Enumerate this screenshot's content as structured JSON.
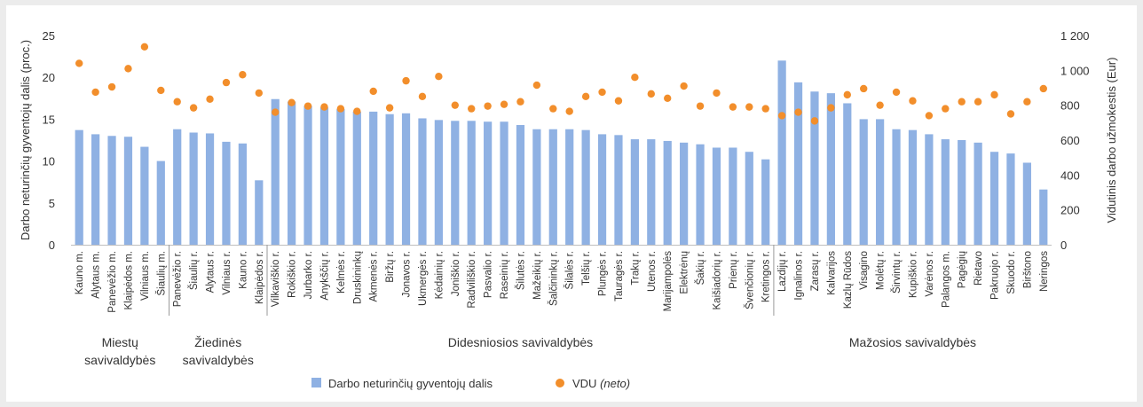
{
  "chart_data": {
    "type": "bar",
    "y_left_label": "Darbo neturinčių gyventojų dalis (proc.)",
    "y_right_label": "Vidutinis darbo užmokestis (Eur)",
    "ylim_left": [
      0,
      25
    ],
    "ylim_right": [
      0,
      1200
    ],
    "yticks_left": [
      "0",
      "5",
      "10",
      "15",
      "20",
      "25"
    ],
    "yticks_right": [
      "0",
      "200",
      "400",
      "600",
      "800",
      "1 000",
      "1 200"
    ],
    "grid": false,
    "legend_position": "bottom",
    "colors": {
      "bar": "#8fb1e3",
      "dot": "#f28e2b"
    },
    "categories": [
      "Kauno m.",
      "Alytaus m.",
      "Panevėžio m.",
      "Klaipėdos m.",
      "Vilniaus m.",
      "Šiaulių m.",
      "Panevėžio r.",
      "Šiaulių r.",
      "Alytaus r.",
      "Vilniaus r.",
      "Kauno r.",
      "Klaipėdos r.",
      "Vilkaviškio r.",
      "Rokiškio r.",
      "Jurbarko r.",
      "Anykščių r.",
      "Kelmės r.",
      "Druskininkų",
      "Akmenės r.",
      "Biržų r.",
      "Jonavos r.",
      "Ukmergės r.",
      "Kėdainių r.",
      "Joniškio r.",
      "Radviliškio r.",
      "Pasvalio r.",
      "Raseinių r.",
      "Šilutės r.",
      "Mažeikių r.",
      "Šalčininkų r.",
      "Šilalės r.",
      "Telšių r.",
      "Plungės r.",
      "Tauragės r.",
      "Trakų r.",
      "Utenos r.",
      "Marijampolės",
      "Elektrėnų",
      "Šakių r.",
      "Kaišiadorių r.",
      "Prienų r.",
      "Švenčionių r.",
      "Kretingos r.",
      "Lazdijų r.",
      "Ignalinos r.",
      "Zarasų r.",
      "Kalvarijos",
      "Kazlų Rūdos",
      "Visagino",
      "Molėtų r.",
      "Širvintų r.",
      "Kupiškio r.",
      "Varėnos r.",
      "Palangos m.",
      "Pagėgių",
      "Rietavo",
      "Pakruojo r.",
      "Skuodo r.",
      "Birštono",
      "Neringos"
    ],
    "series": [
      {
        "name": "Darbo neturinčių gyventojų dalis",
        "axis": "left",
        "values": [
          13.7,
          13.2,
          13.0,
          12.9,
          11.7,
          10.0,
          13.8,
          13.4,
          13.3,
          12.3,
          12.1,
          7.7,
          17.4,
          17.1,
          16.6,
          16.4,
          16.2,
          15.9,
          15.9,
          15.6,
          15.7,
          15.1,
          14.9,
          14.8,
          14.8,
          14.7,
          14.7,
          14.3,
          13.8,
          13.8,
          13.8,
          13.7,
          13.2,
          13.1,
          12.6,
          12.6,
          12.4,
          12.2,
          12.0,
          11.6,
          11.6,
          11.1,
          10.2,
          22.0,
          19.4,
          18.3,
          18.1,
          16.9,
          15.0,
          15.0,
          13.8,
          13.7,
          13.2,
          12.6,
          12.5,
          12.2,
          11.1,
          10.9,
          9.8,
          6.6
        ]
      },
      {
        "name": "VDU",
        "name_suffix": "(neto)",
        "axis": "right",
        "values": [
          1040,
          875,
          905,
          1010,
          1135,
          885,
          820,
          785,
          835,
          930,
          975,
          870,
          760,
          815,
          795,
          790,
          780,
          765,
          880,
          785,
          940,
          850,
          965,
          800,
          780,
          795,
          805,
          820,
          915,
          780,
          765,
          850,
          875,
          825,
          960,
          865,
          840,
          910,
          795,
          870,
          790,
          790,
          780,
          740,
          760,
          710,
          785,
          860,
          895,
          800,
          875,
          825,
          740,
          780,
          820,
          820,
          860,
          750,
          820,
          895
        ]
      }
    ],
    "groups": [
      {
        "label": [
          "Miestų",
          "savivaldybės"
        ],
        "count": 6
      },
      {
        "label": [
          "Žiedinės",
          "savivaldybės"
        ],
        "count": 6
      },
      {
        "label": [
          "Didesniosios savivaldybės"
        ],
        "count": 31
      },
      {
        "label": [
          "Mažosios savivaldybės"
        ],
        "count": 17
      }
    ]
  }
}
